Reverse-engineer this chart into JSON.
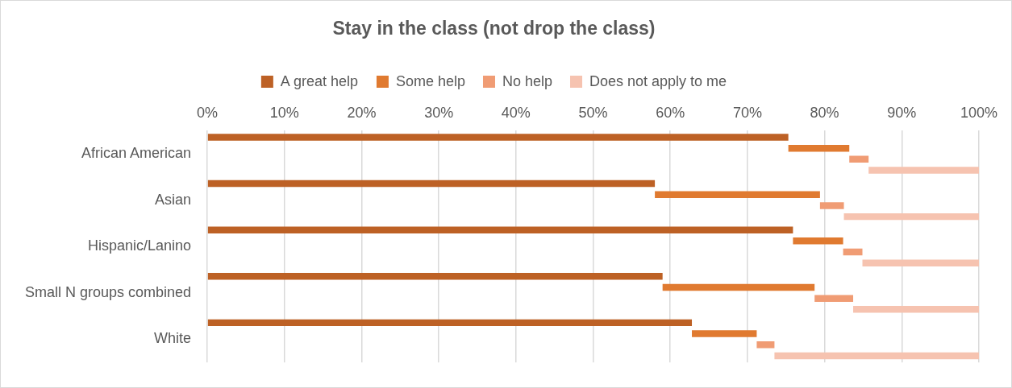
{
  "chart_data": {
    "type": "bar",
    "title": "Stay in the class (not drop the class)",
    "orientation": "horizontal",
    "stacked": true,
    "categories": [
      "African American",
      "Asian",
      "Hispanic/Lanino",
      "Small N groups combined",
      "White"
    ],
    "series": [
      {
        "name": "A great help",
        "color": "#bd6125",
        "values": [
          75.3,
          58.0,
          75.9,
          59.0,
          62.8
        ]
      },
      {
        "name": "Some help",
        "color": "#e07a30",
        "values": [
          7.9,
          21.4,
          6.5,
          19.7,
          8.4
        ]
      },
      {
        "name": "No help",
        "color": "#f09c74",
        "values": [
          2.5,
          3.1,
          2.5,
          5.0,
          2.3
        ]
      },
      {
        "name": "Does not apply to me",
        "color": "#f6c3b0",
        "values": [
          14.3,
          17.5,
          15.1,
          16.3,
          26.5
        ]
      }
    ],
    "xlim": [
      0,
      100
    ],
    "xticks": [
      {
        "value": 0,
        "label": "0%"
      },
      {
        "value": 10,
        "label": "10%"
      },
      {
        "value": 20,
        "label": "20%"
      },
      {
        "value": 30,
        "label": "30%"
      },
      {
        "value": 40,
        "label": "40%"
      },
      {
        "value": 50,
        "label": "50%"
      },
      {
        "value": 60,
        "label": "60%"
      },
      {
        "value": 70,
        "label": "70%"
      },
      {
        "value": 80,
        "label": "80%"
      },
      {
        "value": 90,
        "label": "90%"
      },
      {
        "value": 100,
        "label": "100%"
      }
    ],
    "grid": "x",
    "legend": "top"
  }
}
